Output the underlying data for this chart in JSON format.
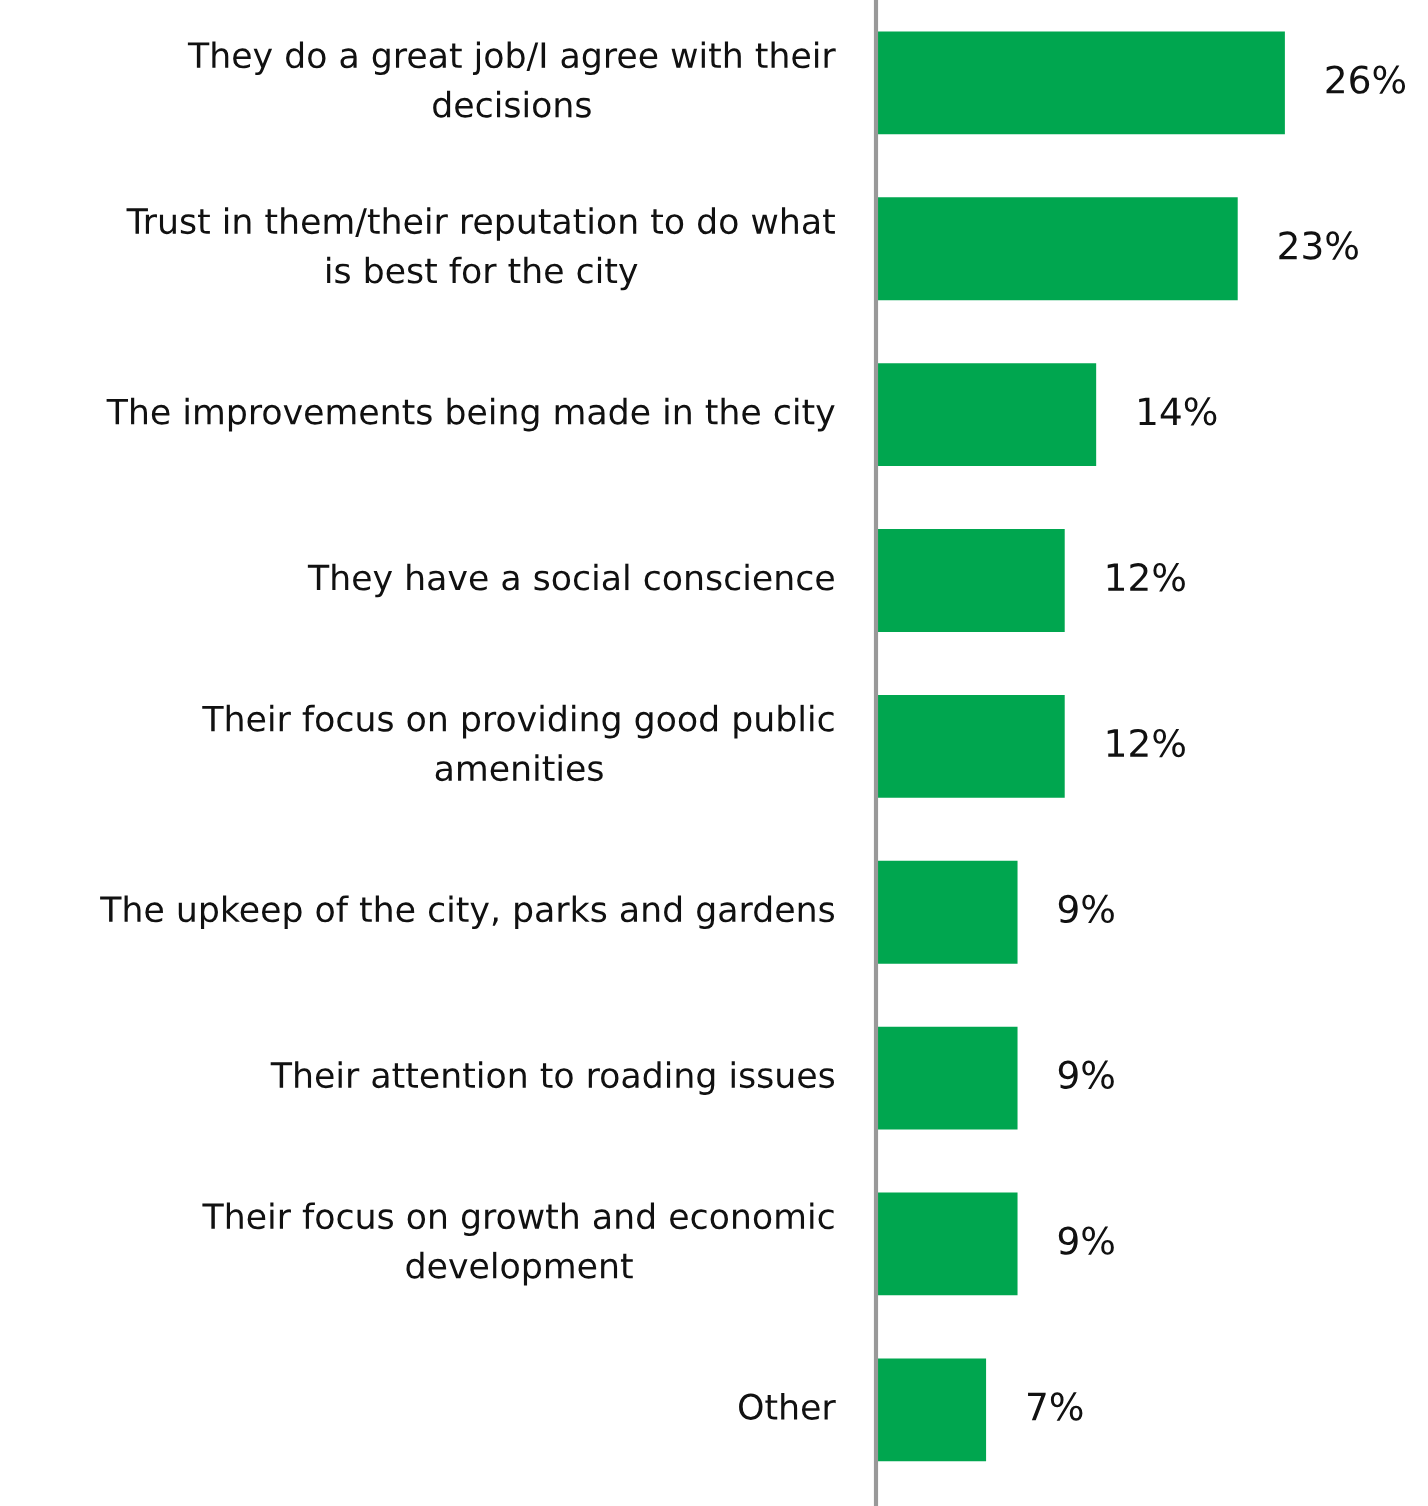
{
  "chart_data": {
    "type": "bar",
    "orientation": "horizontal",
    "categories": [
      "They do a great job/I agree with their decisions",
      "Trust in them/their reputation to do what is best for the city",
      "The improvements being made in the city",
      "They have a social conscience",
      "Their focus on providing good public amenities",
      "The upkeep of the city, parks and gardens",
      "Their attention to roading issues",
      "Their focus on growth and economic development",
      "Other"
    ],
    "values": [
      26,
      23,
      14,
      12,
      12,
      9,
      9,
      9,
      7
    ],
    "value_labels": [
      "26%",
      "23%",
      "14%",
      "12%",
      "12%",
      "9%",
      "9%",
      "9%",
      "7%"
    ],
    "color": "#00a64f",
    "tick_labels": "y"
  }
}
